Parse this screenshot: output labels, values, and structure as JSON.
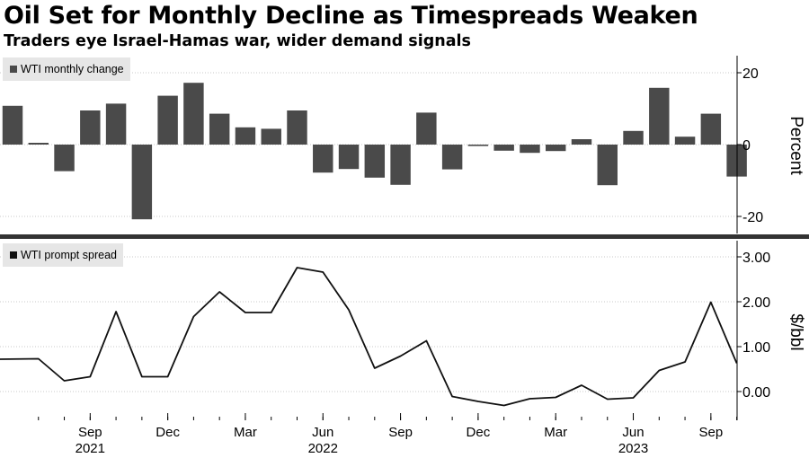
{
  "title": "Oil Set for Monthly Decline as Timespreads Weaken",
  "subtitle": "Traders eye Israel-Hamas war, wider demand signals",
  "colors": {
    "bars": "#4a4a4a",
    "line": "#111111",
    "legend_bg": "#e6e6e6",
    "grid": "#c8c8c8",
    "divider": "#333333"
  },
  "chart_data": [
    {
      "type": "bar",
      "legend": "WTI monthly change",
      "ylabel": "Percent",
      "ylim": [
        -22,
        25
      ],
      "yticks": [
        20,
        0,
        -20
      ],
      "ytick_labels": [
        "20",
        "0",
        "-20"
      ],
      "x": [
        "2021-06",
        "2021-07",
        "2021-08",
        "2021-09",
        "2021-10",
        "2021-11",
        "2021-12",
        "2022-01",
        "2022-02",
        "2022-03",
        "2022-04",
        "2022-05",
        "2022-06",
        "2022-07",
        "2022-08",
        "2022-09",
        "2022-10",
        "2022-11",
        "2022-12",
        "2023-01",
        "2023-02",
        "2023-03",
        "2023-04",
        "2023-05",
        "2023-06",
        "2023-07",
        "2023-08",
        "2023-09",
        "2023-10"
      ],
      "values": [
        10.8,
        0.5,
        -7.4,
        9.5,
        11.4,
        -20.8,
        13.6,
        17.2,
        8.6,
        4.8,
        4.4,
        9.5,
        -7.8,
        -6.8,
        -9.2,
        -11.2,
        8.9,
        -6.9,
        -0.4,
        -1.7,
        -2.3,
        -1.8,
        1.5,
        -11.3,
        3.8,
        15.8,
        2.2,
        8.6,
        -8.9
      ]
    },
    {
      "type": "line",
      "legend": "WTI prompt spread",
      "ylabel": "$/bbl",
      "ylim": [
        -0.6,
        3.3
      ],
      "yticks": [
        3,
        2,
        1,
        0
      ],
      "ytick_labels": [
        "3.00",
        "2.00",
        "1.00",
        "0.00"
      ],
      "x": [
        "2021-06",
        "2021-07",
        "2021-08",
        "2021-09",
        "2021-10",
        "2021-11",
        "2021-12",
        "2022-01",
        "2022-02",
        "2022-03",
        "2022-04",
        "2022-05",
        "2022-06",
        "2022-07",
        "2022-08",
        "2022-09",
        "2022-10",
        "2022-11",
        "2022-12",
        "2023-01",
        "2023-02",
        "2023-03",
        "2023-04",
        "2023-05",
        "2023-06",
        "2023-07",
        "2023-08",
        "2023-09",
        "2023-10"
      ],
      "values": [
        0.72,
        0.73,
        0.24,
        0.33,
        1.78,
        0.33,
        0.33,
        1.67,
        2.22,
        1.76,
        1.76,
        2.76,
        2.66,
        1.82,
        0.52,
        0.79,
        1.13,
        -0.11,
        -0.22,
        -0.31,
        -0.16,
        -0.13,
        0.14,
        -0.17,
        -0.14,
        0.47,
        0.66,
        1.99,
        0.63
      ]
    }
  ],
  "x_axis": {
    "ticks": [
      {
        "month": "2021-09",
        "label": "Sep"
      },
      {
        "month": "2021-12",
        "label": "Dec"
      },
      {
        "month": "2022-03",
        "label": "Mar"
      },
      {
        "month": "2022-06",
        "label": "Jun"
      },
      {
        "month": "2022-09",
        "label": "Sep"
      },
      {
        "month": "2022-12",
        "label": "Dec"
      },
      {
        "month": "2023-03",
        "label": "Mar"
      },
      {
        "month": "2023-06",
        "label": "Jun"
      },
      {
        "month": "2023-09",
        "label": "Sep"
      }
    ],
    "years": [
      {
        "month": "2021-09",
        "label": "2021"
      },
      {
        "month": "2022-06",
        "label": "2022"
      },
      {
        "month": "2023-06",
        "label": "2023"
      }
    ]
  }
}
